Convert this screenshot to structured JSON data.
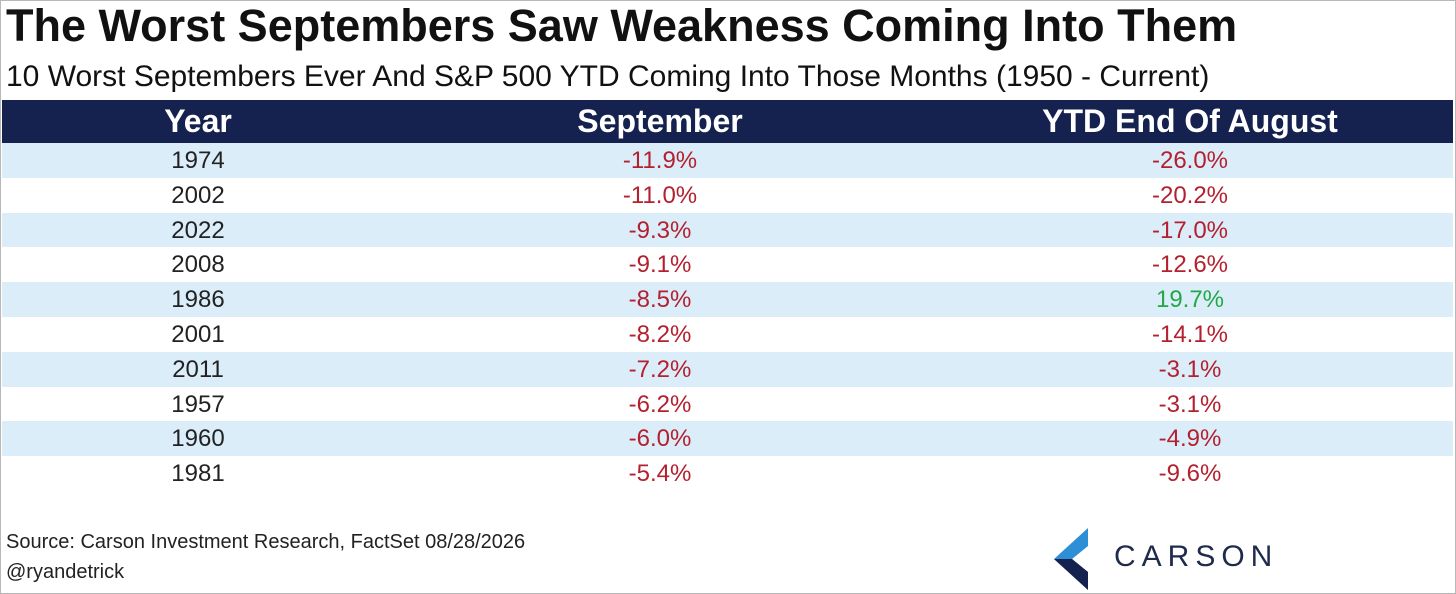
{
  "header": {
    "title": "The Worst Septembers Saw Weakness Coming Into Them",
    "subtitle": "10 Worst Septembers Ever And S&P 500 YTD Coming Into Those Months (1950 - Current)"
  },
  "table": {
    "columns": [
      "Year",
      "September",
      "YTD End Of August"
    ],
    "rows": [
      [
        "1974",
        "-11.9%",
        "-26.0%"
      ],
      [
        "2002",
        "-11.0%",
        "-20.2%"
      ],
      [
        "2022",
        "-9.3%",
        "-17.0%"
      ],
      [
        "2008",
        "-9.1%",
        "-12.6%"
      ],
      [
        "1986",
        "-8.5%",
        "19.7%"
      ],
      [
        "2001",
        "-8.2%",
        "-14.1%"
      ],
      [
        "2011",
        "-7.2%",
        "-3.1%"
      ],
      [
        "1957",
        "-6.2%",
        "-3.1%"
      ],
      [
        "1960",
        "-6.0%",
        "-4.9%"
      ],
      [
        "1981",
        "-5.4%",
        "-9.6%"
      ]
    ]
  },
  "footer": {
    "source": "Source: Carson Investment Research, FactSet 08/28/2026",
    "handle": "@ryandetrick"
  },
  "logo": {
    "text": "CARSON"
  }
}
